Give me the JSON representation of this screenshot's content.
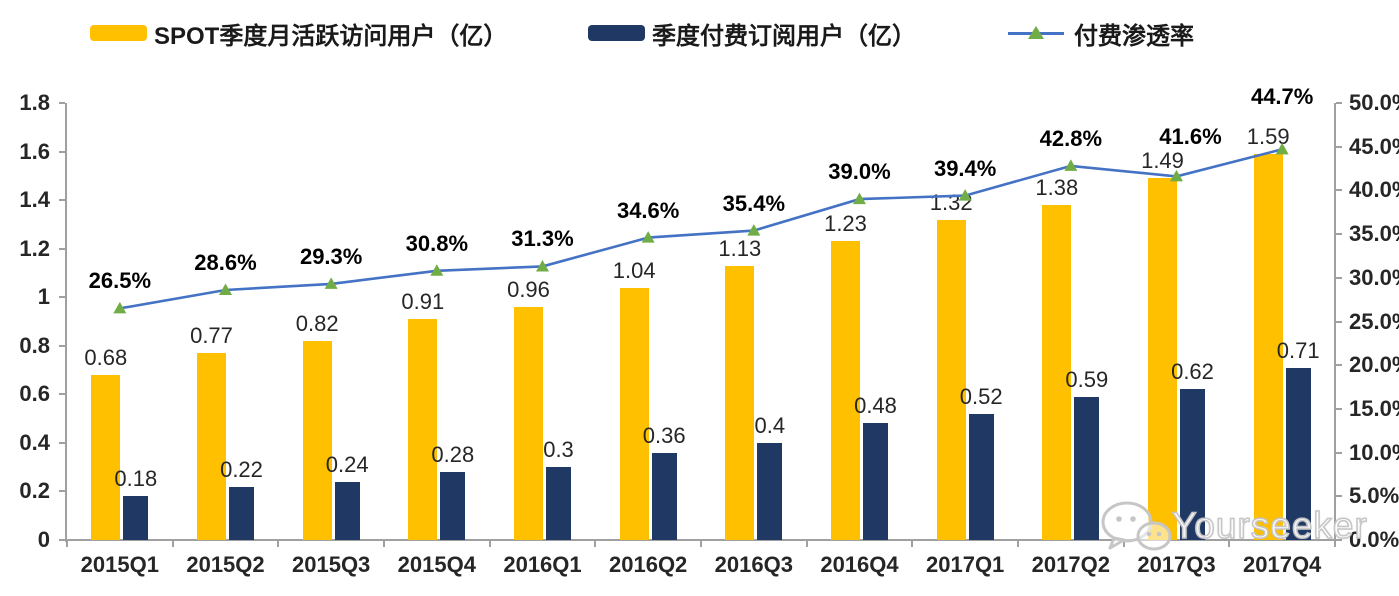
{
  "legend": [
    {
      "label": "SPOT季度月活跃访问用户（亿）",
      "type": "bar",
      "color": "#FFC000"
    },
    {
      "label": "季度付费订阅用户（亿）",
      "type": "bar",
      "color": "#1F3864"
    },
    {
      "label": "付费渗透率",
      "type": "line",
      "color": "#4472C4",
      "marker_color": "#70AD47"
    }
  ],
  "watermark": {
    "text": "Yourseeker",
    "icon": "wechat-icon"
  },
  "chart_data": {
    "type": "bar",
    "subtype": "grouped-bars-with-line",
    "title": "",
    "categories": [
      "2015Q1",
      "2015Q2",
      "2015Q3",
      "2015Q4",
      "2016Q1",
      "2016Q2",
      "2016Q3",
      "2016Q4",
      "2017Q1",
      "2017Q2",
      "2017Q3",
      "2017Q4"
    ],
    "series": [
      {
        "name": "SPOT季度月活跃访问用户（亿）",
        "type": "bar",
        "axis": "left",
        "color": "#FFC000",
        "values": [
          0.68,
          0.77,
          0.82,
          0.91,
          0.96,
          1.04,
          1.13,
          1.23,
          1.32,
          1.38,
          1.49,
          1.59
        ]
      },
      {
        "name": "季度付费订阅用户（亿）",
        "type": "bar",
        "axis": "left",
        "color": "#1F3864",
        "values": [
          0.18,
          0.22,
          0.24,
          0.28,
          0.3,
          0.36,
          0.4,
          0.48,
          0.52,
          0.59,
          0.62,
          0.71
        ]
      },
      {
        "name": "付费渗透率",
        "type": "line",
        "axis": "right",
        "color": "#4472C4",
        "marker": "triangle",
        "marker_color": "#70AD47",
        "values": [
          26.5,
          28.6,
          29.3,
          30.8,
          31.3,
          34.6,
          35.4,
          39.0,
          39.4,
          42.8,
          41.6,
          44.7
        ],
        "labels": [
          "26.5%",
          "28.6%",
          "29.3%",
          "30.8%",
          "31.3%",
          "34.6%",
          "35.4%",
          "39.0%",
          "39.4%",
          "42.8%",
          "41.6%",
          "44.7%"
        ]
      }
    ],
    "left_axis": {
      "min": 0,
      "max": 1.8,
      "step": 0.2,
      "ticks": [
        "1.8",
        "1.6",
        "1.4",
        "1.2",
        "1",
        "0.8",
        "0.6",
        "0.4",
        "0.2",
        "0"
      ]
    },
    "right_axis": {
      "min": 0,
      "max": 50,
      "step": 5,
      "unit": "%",
      "ticks": [
        "50.0%",
        "45.0%",
        "40.0%",
        "35.0%",
        "30.0%",
        "25.0%",
        "20.0%",
        "15.0%",
        "10.0%",
        "5.0%",
        "0.0%"
      ]
    },
    "grid": false,
    "legend_position": "top",
    "axis_color": "#a0a0a0"
  }
}
